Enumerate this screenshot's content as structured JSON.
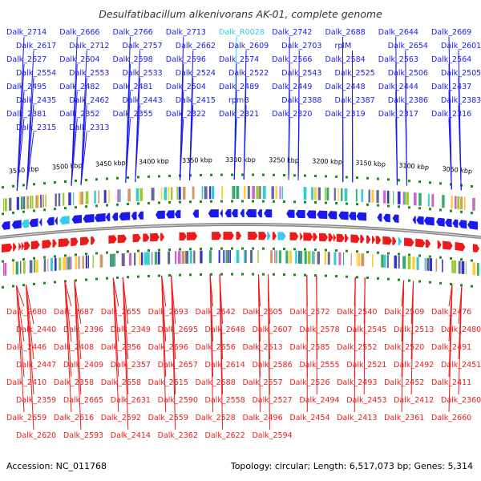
{
  "title": "Desulfatibacillum alkenivorans AK-01, complete genome",
  "footer": {
    "accession": "Accession: NC_011768",
    "summary": "Topology: circular; Length: 6,517,073 bp; Genes: 5,314"
  },
  "colors": {
    "forward": "#1a1aee",
    "reverse": "#ee1a1a",
    "rna": "#33ccee",
    "backbone": "#888888",
    "tick": "#1a8a1a"
  },
  "ticks": [
    "3550 kbp",
    "3500 kbp",
    "3450 kbp",
    "3400 kbp",
    "3350 kbp",
    "3300 kbp",
    "3250 kbp",
    "3200 kbp",
    "3150 kbp",
    "3100 kbp",
    "3050 kbp"
  ],
  "top_labels": [
    "Dalk_2714",
    "Dalk_2666",
    "Dalk_2766",
    "Dalk_2713",
    "Dalk_R0028",
    "Dalk_2742",
    "Dalk_2688",
    "Dalk_2644",
    "Dalk_2669",
    "Dalk_2617",
    "Dalk_2712",
    "Dalk_2757",
    "Dalk_2662",
    "Dalk_2609",
    "Dalk_2703",
    "rplM",
    "Dalk_2654",
    "Dalk_2601",
    "Dalk_2627",
    "Dalk_2604",
    "Dalk_2598",
    "Dalk_2596",
    "Dalk_2574",
    "Dalk_2566",
    "Dalk_2584",
    "Dalk_2563",
    "Dalk_2564",
    "Dalk_2554",
    "Dalk_2553",
    "Dalk_2533",
    "Dalk_2524",
    "Dalk_2522",
    "Dalk_2543",
    "Dalk_2525",
    "Dalk_2506",
    "Dalk_2505",
    "Dalk_2495",
    "Dalk_2482",
    "Dalk_2481",
    "Dalk_2504",
    "Dalk_2489",
    "Dalk_2449",
    "Dalk_2448",
    "Dalk_2444",
    "Dalk_2437",
    "Dalk_2435",
    "Dalk_2462",
    "Dalk_2443",
    "Dalk_2415",
    "rpmB",
    "Dalk_2388",
    "Dalk_2387",
    "Dalk_2386",
    "Dalk_2383",
    "Dalk_2381",
    "Dalk_2352",
    "Dalk_2355",
    "Dalk_2322",
    "Dalk_2321",
    "Dalk_2320",
    "Dalk_2319",
    "Dalk_2317",
    "Dalk_2316",
    "Dalk_2315",
    "Dalk_2313"
  ],
  "bottom_labels": [
    "Dalk_2680",
    "Dalk_2687",
    "Dalk_2655",
    "Dalk_2693",
    "Dalk_2642",
    "Dalk_2605",
    "Dalk_2572",
    "Dalk_2540",
    "Dalk_2509",
    "Dalk_2476",
    "Dalk_2440",
    "Dalk_2396",
    "Dalk_2349",
    "Dalk_2695",
    "Dalk_2648",
    "Dalk_2607",
    "Dalk_2578",
    "Dalk_2545",
    "Dalk_2513",
    "Dalk_2480",
    "Dalk_2446",
    "Dalk_2408",
    "Dalk_2356",
    "Dalk_2696",
    "Dalk_2656",
    "Dalk_2613",
    "Dalk_2585",
    "Dalk_2552",
    "Dalk_2520",
    "Dalk_2491",
    "Dalk_2447",
    "Dalk_2409",
    "Dalk_2357",
    "Dalk_2657",
    "Dalk_2614",
    "Dalk_2586",
    "Dalk_2555",
    "Dalk_2521",
    "Dalk_2492",
    "Dalk_2451",
    "Dalk_2410",
    "Dalk_2358",
    "Dalk_2658",
    "Dalk_2615",
    "Dalk_2588",
    "Dalk_2557",
    "Dalk_2526",
    "Dalk_2493",
    "Dalk_2452",
    "Dalk_2411",
    "Dalk_2359",
    "Dalk_2665",
    "Dalk_2631",
    "Dalk_2590",
    "Dalk_2558",
    "Dalk_2527",
    "Dalk_2494",
    "Dalk_2453",
    "Dalk_2412",
    "Dalk_2360",
    "Dalk_2659",
    "Dalk_2616",
    "Dalk_2592",
    "Dalk_2559",
    "Dalk_2528",
    "Dalk_2496",
    "Dalk_2454",
    "Dalk_2413",
    "Dalk_2361",
    "Dalk_2660",
    "Dalk_2620",
    "Dalk_2593",
    "Dalk_2414",
    "Dalk_2362",
    "Dalk_2622",
    "Dalk_2594"
  ]
}
